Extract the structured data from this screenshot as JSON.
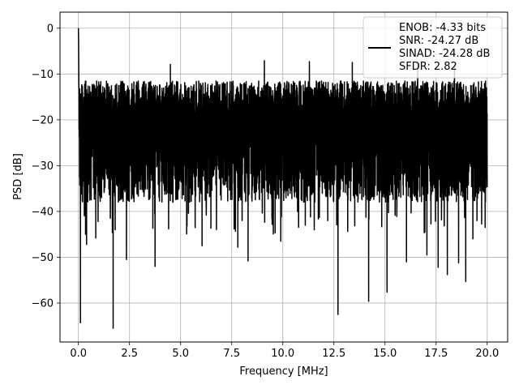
{
  "chart_data": {
    "type": "line",
    "xlabel": "Frequency [MHz]",
    "ylabel": "PSD [dB]",
    "xlim": [
      -0.9,
      21.0
    ],
    "ylim": [
      -68.5,
      3.5
    ],
    "xticks": [
      {
        "value": 0.0,
        "label": "0.0"
      },
      {
        "value": 2.5,
        "label": "2.5"
      },
      {
        "value": 5.0,
        "label": "5.0"
      },
      {
        "value": 7.5,
        "label": "7.5"
      },
      {
        "value": 10.0,
        "label": "10.0"
      },
      {
        "value": 12.5,
        "label": "12.5"
      },
      {
        "value": 15.0,
        "label": "15.0"
      },
      {
        "value": 17.5,
        "label": "17.5"
      },
      {
        "value": 20.0,
        "label": "20.0"
      }
    ],
    "yticks": [
      {
        "value": 0,
        "label": "0"
      },
      {
        "value": -10,
        "label": "−10"
      },
      {
        "value": -20,
        "label": "−20"
      },
      {
        "value": -30,
        "label": "−30"
      },
      {
        "value": -40,
        "label": "−40"
      },
      {
        "value": -50,
        "label": "−50"
      },
      {
        "value": -60,
        "label": "−60"
      }
    ],
    "grid": true,
    "legend": {
      "position": "top-right",
      "entries": [
        "ENOB: -4.33 bits",
        "SNR: -24.27 dB",
        "SINAD: -24.28 dB",
        "SFDR: 2.82"
      ]
    },
    "series": [
      {
        "color": "#000000",
        "x_range": [
          0.0,
          20.0
        ],
        "peak": {
          "x": 0.0,
          "y": 0.0
        },
        "noise_upper_envelope_db": -10.5,
        "noise_floor_median_db": -22,
        "noise_lower_envelope_db": -40,
        "deep_dips": [
          {
            "x": 0.1,
            "y": -64.3
          },
          {
            "x": 0.35,
            "y": -45.0
          },
          {
            "x": 0.4,
            "y": -47.2
          },
          {
            "x": 0.85,
            "y": -45.8
          },
          {
            "x": 1.7,
            "y": -65.5
          },
          {
            "x": 1.8,
            "y": -44.0
          },
          {
            "x": 2.35,
            "y": -50.5
          },
          {
            "x": 3.75,
            "y": -52.0
          },
          {
            "x": 6.05,
            "y": -47.5
          },
          {
            "x": 7.8,
            "y": -47.8
          },
          {
            "x": 8.3,
            "y": -50.8
          },
          {
            "x": 9.9,
            "y": -46.5
          },
          {
            "x": 11.1,
            "y": -43.0
          },
          {
            "x": 12.2,
            "y": -42.0
          },
          {
            "x": 12.7,
            "y": -62.5
          },
          {
            "x": 14.2,
            "y": -59.6
          },
          {
            "x": 15.1,
            "y": -57.6
          },
          {
            "x": 16.05,
            "y": -51.0
          },
          {
            "x": 16.95,
            "y": -44.5
          },
          {
            "x": 17.05,
            "y": -49.5
          },
          {
            "x": 17.6,
            "y": -52.2
          },
          {
            "x": 18.05,
            "y": -53.8
          },
          {
            "x": 18.6,
            "y": -51.2
          },
          {
            "x": 18.95,
            "y": -55.3
          },
          {
            "x": 19.3,
            "y": -46.0
          },
          {
            "x": 19.9,
            "y": -43.5
          }
        ],
        "high_spikes": [
          {
            "x": 4.5,
            "y": -7.9
          },
          {
            "x": 9.1,
            "y": -7.1
          },
          {
            "x": 11.3,
            "y": -7.3
          },
          {
            "x": 13.4,
            "y": -7.5
          },
          {
            "x": 16.6,
            "y": -8.1
          },
          {
            "x": 18.4,
            "y": -7.9
          }
        ]
      }
    ]
  }
}
